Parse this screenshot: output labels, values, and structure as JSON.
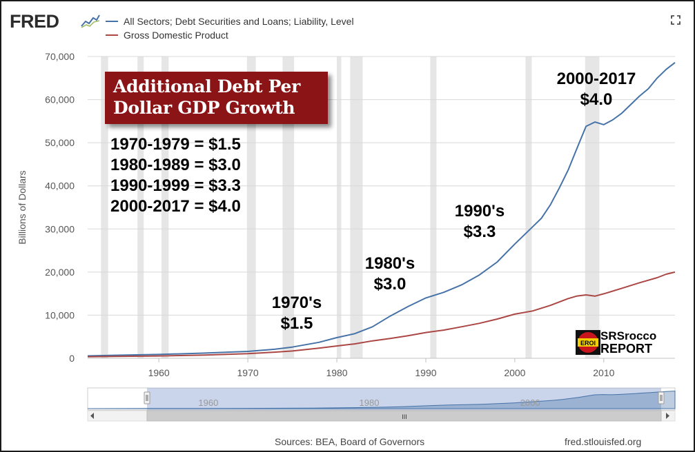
{
  "header": {
    "logo_text": "FRED",
    "logo_icon": "line-chart-icon",
    "expand_icon": "expand-icon"
  },
  "chart_data": {
    "type": "line",
    "title": "",
    "ylabel": "Billions of Dollars",
    "xlabel": "",
    "xlim": [
      1952,
      2018
    ],
    "ylim": [
      0,
      70000
    ],
    "x_ticks": [
      "1960",
      "1970",
      "1980",
      "1990",
      "2000",
      "2010"
    ],
    "y_ticks": [
      "0",
      "10,000",
      "20,000",
      "30,000",
      "40,000",
      "50,000",
      "60,000",
      "70,000"
    ],
    "grid": "horizontal",
    "legend_position": "top-left",
    "recessions": [
      [
        1953.5,
        1954.3
      ],
      [
        1957.6,
        1958.3
      ],
      [
        1960.3,
        1961.1
      ],
      [
        1969.9,
        1970.9
      ],
      [
        1973.9,
        1975.2
      ],
      [
        1980.0,
        1980.5
      ],
      [
        1981.5,
        1982.9
      ],
      [
        1990.5,
        1991.2
      ],
      [
        2001.2,
        2001.9
      ],
      [
        2007.9,
        2009.5
      ]
    ],
    "series": [
      {
        "name": "All Sectors; Debt Securities and Loans; Liability, Level",
        "color": "#4572a7",
        "x": [
          1952,
          1955,
          1960,
          1965,
          1970,
          1973,
          1975,
          1978,
          1980,
          1982,
          1984,
          1986,
          1988,
          1990,
          1992,
          1994,
          1996,
          1998,
          2000,
          2002,
          2003,
          2004,
          2005,
          2006,
          2007,
          2008,
          2009,
          2010,
          2011,
          2012,
          2013,
          2014,
          2015,
          2016,
          2017,
          2018
        ],
        "y": [
          560,
          700,
          900,
          1200,
          1600,
          2100,
          2600,
          3700,
          4800,
          5700,
          7300,
          9800,
          12000,
          14000,
          15300,
          17000,
          19300,
          22300,
          26500,
          30500,
          32500,
          35600,
          39500,
          43700,
          48800,
          53800,
          54800,
          54200,
          55300,
          56800,
          58800,
          60800,
          62500,
          65000,
          67000,
          68600
        ]
      },
      {
        "name": "Gross Domestic Product",
        "color": "#aa4643",
        "x": [
          1952,
          1955,
          1960,
          1965,
          1970,
          1973,
          1975,
          1978,
          1980,
          1982,
          1984,
          1986,
          1988,
          1990,
          1992,
          1994,
          1996,
          1998,
          2000,
          2002,
          2004,
          2006,
          2007,
          2008,
          2009,
          2010,
          2012,
          2014,
          2016,
          2017,
          2018
        ],
        "y": [
          370,
          430,
          540,
          740,
          1070,
          1430,
          1690,
          2350,
          2860,
          3340,
          4040,
          4580,
          5240,
          5980,
          6540,
          7310,
          8100,
          9090,
          10250,
          10980,
          12270,
          13850,
          14450,
          14710,
          14420,
          14960,
          16200,
          17520,
          18700,
          19500,
          20000
        ]
      }
    ],
    "annotations": {
      "box_line1": "Additional Debt Per",
      "box_line2": "Dollar GDP Growth",
      "list": [
        "1970-1979 = $1.5",
        "1980-1989 = $3.0",
        "1990-1999 = $3.3",
        "2000-2017 = $4.0"
      ],
      "decades": [
        {
          "line1": "1970's",
          "line2": "$1.5"
        },
        {
          "line1": "1980's",
          "line2": "$3.0"
        },
        {
          "line1": "1990's",
          "line2": "$3.3"
        },
        {
          "line1": "2000-2017",
          "line2": "$4.0"
        }
      ]
    },
    "navigator": {
      "tick_labels": [
        "1960",
        "1980",
        "2000"
      ],
      "handle_label": "III"
    }
  },
  "branding": {
    "badge_text": "EROI",
    "line1": "SRSrocco",
    "line2": "REPORT"
  },
  "footer": {
    "sources": "Sources: BEA, Board of Governors",
    "site": "fred.stlouisfed.org"
  }
}
